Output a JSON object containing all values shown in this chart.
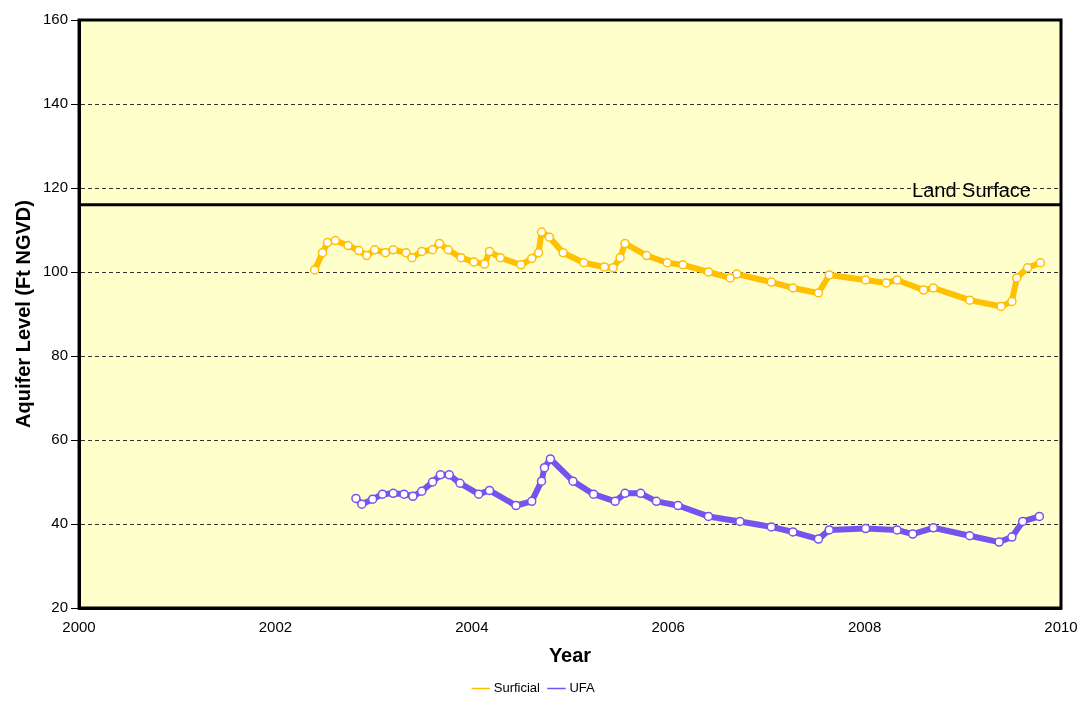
{
  "chart_data": {
    "type": "line",
    "xlabel": "Year",
    "ylabel": "Aquifer Level (Ft NGVD)",
    "xlim": [
      2000,
      2010
    ],
    "xticks": [
      2000,
      2002,
      2004,
      2006,
      2008,
      2010
    ],
    "ylim": [
      20,
      160
    ],
    "yticks": [
      20,
      40,
      60,
      80,
      100,
      120,
      140,
      160
    ],
    "grid": "y",
    "legend": "bottom",
    "marker": "circle",
    "line_style": "solid",
    "ref_lines": [
      {
        "axis": "y",
        "value": 116,
        "label": "Land Surface",
        "color": "#000000"
      }
    ],
    "series": [
      {
        "name": "Surficial",
        "color": "#ffc000",
        "x": [
          2002.4,
          2002.48,
          2002.53,
          2002.61,
          2002.74,
          2002.85,
          2002.93,
          2003.01,
          2003.12,
          2003.2,
          2003.33,
          2003.39,
          2003.49,
          2003.6,
          2003.67,
          2003.76,
          2003.89,
          2004.02,
          2004.13,
          2004.18,
          2004.29,
          2004.5,
          2004.61,
          2004.68,
          2004.71,
          2004.79,
          2004.93,
          2005.14,
          2005.35,
          2005.44,
          2005.51,
          2005.56,
          2005.78,
          2005.99,
          2006.15,
          2006.41,
          2006.63,
          2006.7,
          2007.05,
          2007.27,
          2007.53,
          2007.64,
          2008.01,
          2008.22,
          2008.33,
          2008.6,
          2008.7,
          2009.07,
          2009.39,
          2009.5,
          2009.55,
          2009.66,
          2009.79
        ],
        "values": [
          100.5,
          104.6,
          107,
          107.5,
          106.3,
          105.1,
          103.9,
          105.3,
          104.6,
          105.3,
          104.6,
          103.4,
          104.9,
          105.3,
          106.8,
          105.3,
          103.4,
          102.4,
          101.9,
          104.9,
          103.4,
          101.7,
          103.2,
          104.6,
          109.5,
          108.3,
          104.6,
          102.2,
          101.2,
          101,
          103.4,
          106.8,
          103.9,
          102.2,
          101.7,
          100,
          98.6,
          99.5,
          97.6,
          96.2,
          95,
          99.3,
          98.1,
          97.4,
          98.1,
          95.7,
          96.2,
          93.3,
          91.8,
          93,
          98.6,
          101,
          102.2
        ]
      },
      {
        "name": "UFA",
        "color": "#7355ee",
        "x": [
          2002.82,
          2002.88,
          2002.99,
          2003.09,
          2003.2,
          2003.31,
          2003.4,
          2003.49,
          2003.6,
          2003.68,
          2003.77,
          2003.88,
          2004.07,
          2004.18,
          2004.45,
          2004.61,
          2004.71,
          2004.74,
          2004.8,
          2005.03,
          2005.24,
          2005.46,
          2005.56,
          2005.72,
          2005.88,
          2006.1,
          2006.41,
          2006.73,
          2007.05,
          2007.27,
          2007.53,
          2007.64,
          2008.01,
          2008.33,
          2008.49,
          2008.7,
          2009.07,
          2009.37,
          2009.5,
          2009.61,
          2009.78
        ],
        "values": [
          46.1,
          44.7,
          45.9,
          47.1,
          47.3,
          47.1,
          46.6,
          47.8,
          50,
          51.7,
          51.7,
          49.7,
          47.1,
          48,
          44.4,
          45.4,
          50.2,
          53.4,
          55.5,
          50.2,
          47.1,
          45.4,
          47.3,
          47.3,
          45.4,
          44.4,
          41.8,
          40.6,
          39.3,
          38.1,
          36.4,
          38.6,
          38.9,
          38.6,
          37.6,
          39.1,
          37.2,
          35.7,
          36.9,
          40.6,
          41.8
        ]
      }
    ]
  }
}
